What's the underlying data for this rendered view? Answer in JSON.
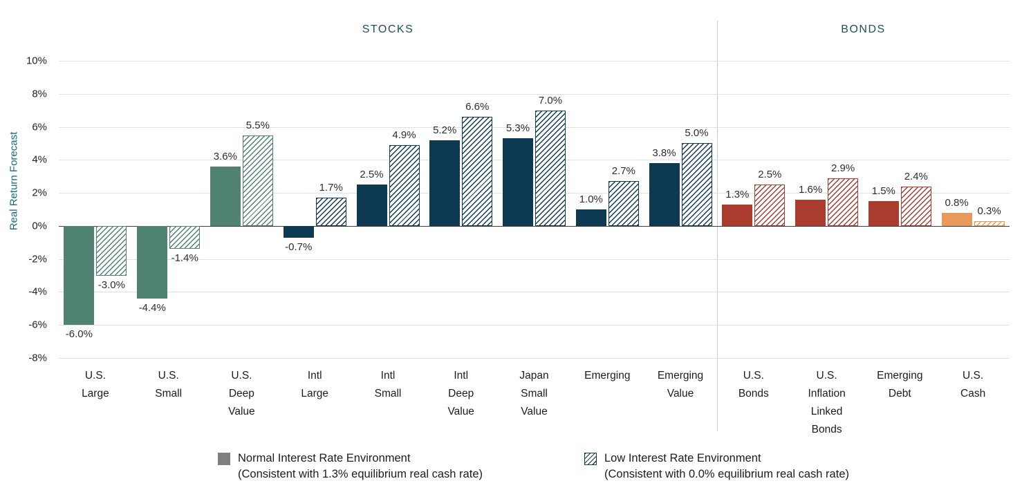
{
  "chart_data": {
    "type": "bar",
    "ylabel": "Real Return Forecast",
    "ylim": [
      -8,
      10
    ],
    "yticks": [
      10,
      8,
      6,
      4,
      2,
      0,
      -2,
      -4,
      -6,
      -8
    ],
    "ytick_labels": [
      "10%",
      "8%",
      "6%",
      "4%",
      "2%",
      "0%",
      "-2%",
      "-4%",
      "-6%",
      "-8%"
    ],
    "grid": "horizontal",
    "legend_position": "bottom",
    "sections": [
      {
        "label": "STOCKS",
        "category_count": 9
      },
      {
        "label": "BONDS",
        "category_count": 4
      }
    ],
    "series": [
      {
        "key": "normal",
        "name": "Normal Interest Rate Environment",
        "style": "solid"
      },
      {
        "key": "low",
        "name": "Low Interest Rate Environment",
        "style": "hatched"
      }
    ],
    "categories": [
      {
        "label_lines": [
          "U.S.",
          "Large"
        ],
        "color": "#4F8271",
        "normal": -6.0,
        "low": -3.0
      },
      {
        "label_lines": [
          "U.S.",
          "Small"
        ],
        "color": "#4F8271",
        "normal": -4.4,
        "low": -1.4
      },
      {
        "label_lines": [
          "U.S.",
          "Deep",
          "Value"
        ],
        "color": "#4F8271",
        "normal": 3.6,
        "low": 5.5
      },
      {
        "label_lines": [
          "Intl",
          "Large"
        ],
        "color": "#0D3A52",
        "normal": -0.7,
        "low": 1.7
      },
      {
        "label_lines": [
          "Intl",
          "Small"
        ],
        "color": "#0D3A52",
        "normal": 2.5,
        "low": 4.9
      },
      {
        "label_lines": [
          "Intl",
          "Deep",
          "Value"
        ],
        "color": "#0D3A52",
        "normal": 5.2,
        "low": 6.6
      },
      {
        "label_lines": [
          "Japan",
          "Small",
          "Value"
        ],
        "color": "#0D3A52",
        "normal": 5.3,
        "low": 7.0
      },
      {
        "label_lines": [
          "Emerging"
        ],
        "color": "#0D3A52",
        "normal": 1.0,
        "low": 2.7
      },
      {
        "label_lines": [
          "Emerging",
          "Value"
        ],
        "color": "#0D3A52",
        "normal": 3.8,
        "low": 5.0
      },
      {
        "label_lines": [
          "U.S.",
          "Bonds"
        ],
        "color": "#A93B2F",
        "normal": 1.3,
        "low": 2.5
      },
      {
        "label_lines": [
          "U.S.",
          "Inflation",
          "Linked",
          "Bonds"
        ],
        "color": "#A93B2F",
        "normal": 1.6,
        "low": 2.9
      },
      {
        "label_lines": [
          "Emerging",
          "Debt"
        ],
        "color": "#A93B2F",
        "normal": 1.5,
        "low": 2.4
      },
      {
        "label_lines": [
          "U.S.",
          "Cash"
        ],
        "color": "#E9995C",
        "normal": 0.8,
        "low": 0.3
      }
    ]
  },
  "legend": {
    "normal": {
      "title": "Normal Interest Rate Environment",
      "subtitle": "(Consistent with 1.3% equilibrium real cash rate)",
      "swatch_color": "#7F7F7F"
    },
    "low": {
      "title": "Low Interest Rate Environment",
      "subtitle": "(Consistent with 0.0% equilibrium real cash rate)",
      "swatch_color": "#0D3A52"
    }
  }
}
